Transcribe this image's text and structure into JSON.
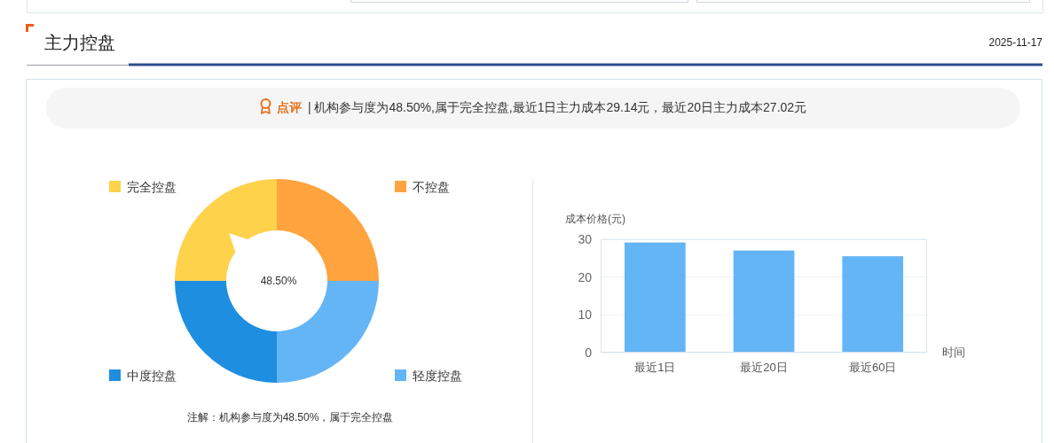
{
  "chart_data": [
    {
      "type": "other",
      "title": "主力控盘",
      "annotations": [
        "2025-11-17",
        "点评",
        "| 机构参与度为48.50%,属于完全控盘,最近1日主力成本29.14元，最近20日主力成本27.02元"
      ]
    },
    {
      "type": "donut",
      "categories": [
        "不控盘",
        "轻度控盘",
        "中度控盘",
        "完全控盘"
      ],
      "values": [
        25,
        25,
        25,
        25
      ],
      "colors": [
        "#ffa33f",
        "#64b5f6",
        "#1e8ee0",
        "#ffd24c"
      ],
      "legend": true,
      "annotations": [
        {
          "text": "48.50%",
          "x": "完全控盘"
        },
        "注解：机构参与度为48.50%，属于完全控盘"
      ]
    },
    {
      "type": "bar",
      "categories": [
        "最近1日",
        "最近20日",
        "最近60日"
      ],
      "values": [
        29.14,
        27.02,
        25.5
      ],
      "color": "#64b5f6",
      "xlabel": "时间",
      "ylabel": "成本价格(元)",
      "ylim": [
        0,
        30
      ],
      "yticks": [
        0,
        10,
        20,
        30
      ],
      "grid": "y"
    }
  ]
}
